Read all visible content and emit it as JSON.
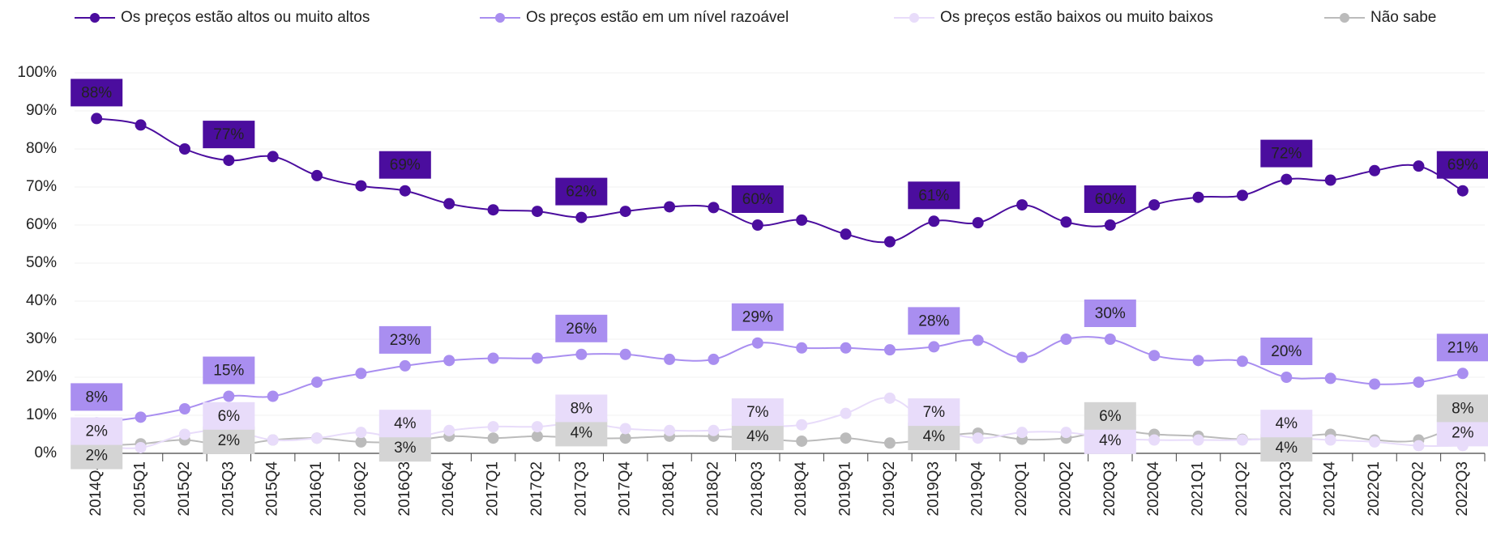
{
  "chart_data": {
    "type": "line",
    "categories": [
      "2014Q4",
      "2015Q1",
      "2015Q2",
      "2015Q3",
      "2015Q4",
      "2016Q1",
      "2016Q2",
      "2016Q3",
      "2016Q4",
      "2017Q1",
      "2017Q2",
      "2017Q3",
      "2017Q4",
      "2018Q1",
      "2018Q2",
      "2018Q3",
      "2018Q4",
      "2019Q1",
      "2019Q2",
      "2019Q3",
      "2019Q4",
      "2020Q1",
      "2020Q2",
      "2020Q3",
      "2020Q4",
      "2021Q1",
      "2021Q2",
      "2021Q3",
      "2021Q4",
      "2022Q1",
      "2022Q2",
      "2022Q3"
    ],
    "series": [
      {
        "name": "Os preços estão altos ou muito altos",
        "color": "#4b0d9e",
        "label_color": "#4b0d9e",
        "label_text_color": "#ffffff",
        "values": [
          88,
          86.3,
          80,
          77,
          78,
          73,
          70.3,
          69,
          65.6,
          64,
          63.6,
          62,
          63.6,
          64.8,
          64.6,
          60,
          61.3,
          57.6,
          55.6,
          61,
          60.6,
          65.3,
          60.8,
          60,
          65.3,
          67.3,
          67.8,
          72,
          71.8,
          74.3,
          75.5,
          69
        ],
        "value_labels": [
          "88%",
          null,
          null,
          "77%",
          null,
          null,
          null,
          "69%",
          null,
          null,
          null,
          "62%",
          null,
          null,
          null,
          "60%",
          null,
          null,
          null,
          "61%",
          null,
          null,
          null,
          "60%",
          null,
          null,
          null,
          "72%",
          null,
          null,
          null,
          "69%"
        ]
      },
      {
        "name": "Os preços estão em um nível razoável",
        "color": "#a98ef0",
        "label_color": "#a98ef0",
        "label_text_color": "#ffffff",
        "values": [
          8,
          9.5,
          11.7,
          15,
          15,
          18.7,
          21,
          23,
          24.4,
          25,
          25,
          26,
          26,
          24.7,
          24.7,
          29,
          27.7,
          27.7,
          27.2,
          28,
          29.7,
          25.2,
          30,
          30,
          25.7,
          24.4,
          24.2,
          20,
          19.7,
          18.2,
          18.7,
          21
        ],
        "value_labels": [
          "8%",
          null,
          null,
          "15%",
          null,
          null,
          null,
          "23%",
          null,
          null,
          null,
          "26%",
          null,
          null,
          null,
          "29%",
          null,
          null,
          null,
          "28%",
          null,
          null,
          null,
          "30%",
          null,
          null,
          null,
          "20%",
          null,
          null,
          null,
          "21%"
        ]
      },
      {
        "name": "Os preços estão baixos ou muito baixos",
        "color": "#e8dcfa",
        "label_color": "#e8dcfa",
        "label_text_color": "#333333",
        "values": [
          2,
          1.5,
          5,
          6,
          3.5,
          4,
          5.5,
          4,
          6,
          7,
          7,
          8,
          6.5,
          6,
          6,
          7,
          7.5,
          10.5,
          14.5,
          7,
          4,
          5.5,
          5.5,
          4,
          3.5,
          3.5,
          3.5,
          4,
          3.5,
          3,
          2,
          2
        ],
        "value_labels": [
          "2%",
          null,
          null,
          "6%",
          null,
          null,
          null,
          "4%",
          null,
          null,
          null,
          "8%",
          null,
          null,
          null,
          "7%",
          null,
          null,
          null,
          "7%",
          null,
          null,
          null,
          "4%",
          null,
          null,
          null,
          "4%",
          null,
          null,
          null,
          "2%"
        ]
      },
      {
        "name": "Não sabe",
        "color": "#bbbbbb",
        "label_color": "#d4d4d4",
        "label_text_color": "#333333",
        "values": [
          2,
          2.5,
          3.5,
          2,
          3.5,
          4,
          3,
          3,
          4.5,
          4,
          4.5,
          4,
          4,
          4.5,
          4.5,
          4,
          3.2,
          4,
          2.7,
          4,
          5.3,
          3.7,
          4,
          6,
          5,
          4.5,
          3.7,
          4,
          5,
          3.5,
          3.5,
          8
        ],
        "value_labels": [
          "2%",
          null,
          null,
          "2%",
          null,
          null,
          null,
          "3%",
          null,
          null,
          null,
          "4%",
          null,
          null,
          null,
          "4%",
          null,
          null,
          null,
          "4%",
          null,
          null,
          null,
          "6%",
          null,
          null,
          null,
          "4%",
          null,
          null,
          null,
          "8%"
        ]
      }
    ],
    "ylim": [
      0,
      100
    ],
    "yticks": [
      {
        "value": 0,
        "label": "0%"
      },
      {
        "value": 10,
        "label": "10%"
      },
      {
        "value": 20,
        "label": "20%"
      },
      {
        "value": 30,
        "label": "30%"
      },
      {
        "value": 40,
        "label": "40%"
      },
      {
        "value": 50,
        "label": "50%"
      },
      {
        "value": 60,
        "label": "60%"
      },
      {
        "value": 70,
        "label": "70%"
      },
      {
        "value": 80,
        "label": "80%"
      },
      {
        "value": 90,
        "label": "90%"
      },
      {
        "value": 100,
        "label": "100%"
      }
    ],
    "grid": true,
    "legend": "top"
  }
}
